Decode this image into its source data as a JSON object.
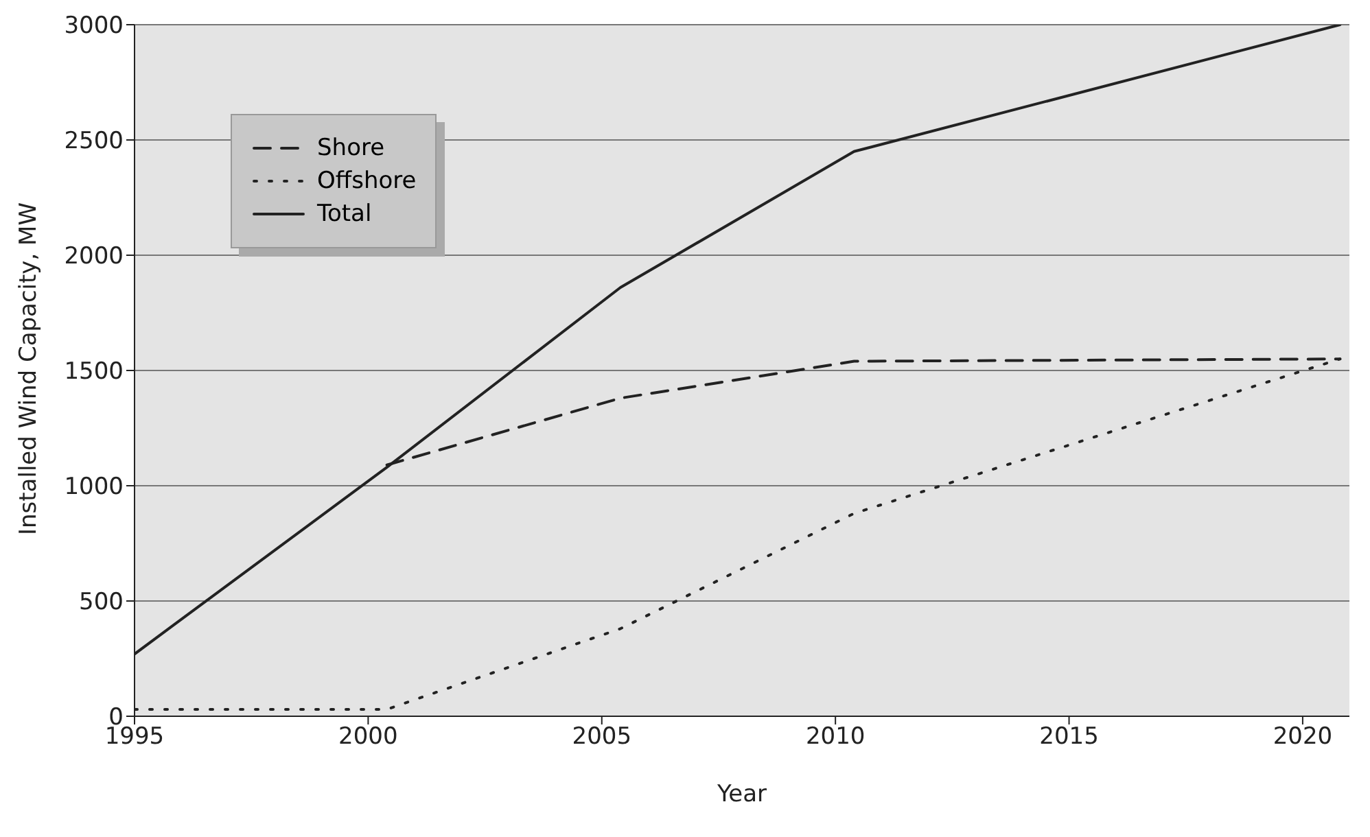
{
  "chart_data": {
    "type": "line",
    "xlabel": "Year",
    "ylabel": "Installed Wind Capacity, MW",
    "xlim": [
      1995,
      2021
    ],
    "xticks": [
      1995,
      2000,
      2005,
      2010,
      2015,
      2020
    ],
    "ylim": [
      0,
      3000
    ],
    "yticks": [
      0,
      500,
      1000,
      1500,
      2000,
      2500,
      3000
    ],
    "grid": "y",
    "legend": "top left",
    "marker": "none",
    "series": [
      {
        "name": "Shore",
        "color": "#222222",
        "line_style": "dashed",
        "x": [
          2000.4,
          2005.4,
          2010.4,
          2020.8
        ],
        "values": [
          1090,
          1380,
          1540,
          1550
        ]
      },
      {
        "name": "Offshore",
        "color": "#222222",
        "line_style": "dotted",
        "x": [
          1995,
          2000.4,
          2005.4,
          2010.4,
          2020.8
        ],
        "values": [
          30,
          30,
          380,
          880,
          1550
        ]
      },
      {
        "name": "Total",
        "color": "#222222",
        "line_style": "solid",
        "x": [
          1995,
          2000.4,
          2005.4,
          2010.4,
          2020.8
        ],
        "values": [
          270,
          1080,
          1860,
          2450,
          3000
        ]
      }
    ]
  }
}
